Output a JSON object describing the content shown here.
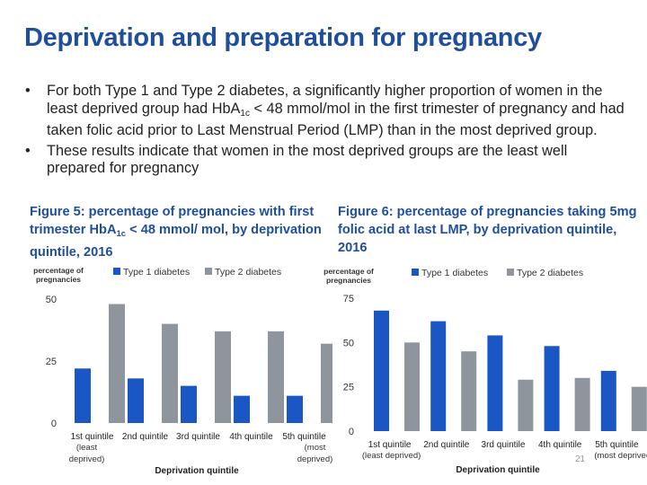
{
  "slide": {
    "title": "Deprivation and preparation for pregnancy",
    "page_number": "21"
  },
  "bullets": [
    {
      "mark": "•",
      "text_a": "For both Type 1 and Type 2 diabetes, a significantly higher proportion of women in the least deprived group had HbA",
      "text_sub": "1c",
      "text_b": " < 48 mmol/mol in the first trimester of pregnancy and had taken folic acid prior to Last Menstrual Period (LMP) than in the most deprived group."
    },
    {
      "mark": "•",
      "text_a": "These results indicate that women in the most deprived groups are the least well prepared for pregnancy",
      "text_sub": "",
      "text_b": ""
    }
  ],
  "colors": {
    "title": "#1f4e9c",
    "type1": "#1a56c4",
    "type2": "#8f959c"
  },
  "chart_data": [
    {
      "type": "bar",
      "title_a": "Figure 5: percentage of pregnancies with first trimester HbA",
      "title_sub": "1c",
      "title_b": " < 48 mmol/ mol, by deprivation quintile, 2016",
      "ylabel_lines": [
        "percentage of",
        "pregnancies"
      ],
      "xlabel": "Deprivation quintile",
      "categories": [
        "1st quintile",
        "2nd quintile",
        "3rd quintile",
        "4th quintile",
        "5th quintile"
      ],
      "category_sublabels": {
        "first": [
          "(least",
          "deprived)"
        ],
        "last": [
          "(most",
          "deprived)"
        ]
      },
      "yticks": [
        0,
        25,
        50
      ],
      "ylim": [
        0,
        50
      ],
      "legend_position": "top",
      "series": [
        {
          "name": "Type 1 diabetes",
          "values": [
            22,
            18,
            15,
            11,
            11
          ]
        },
        {
          "name": "Type 2 diabetes",
          "values": [
            48,
            40,
            37,
            37,
            32
          ]
        }
      ]
    },
    {
      "type": "bar",
      "title_a": "Figure 6: percentage of pregnancies taking 5mg folic acid at last LMP, by deprivation quintile, 2016",
      "title_sub": "",
      "title_b": "",
      "ylabel_lines": [
        "percentage of",
        "pregnancies"
      ],
      "xlabel": "Deprivation quintile",
      "categories": [
        "1st quintile",
        "2nd quintile",
        "3rd quintile",
        "4th quintile",
        "5th quintile"
      ],
      "category_sublabels": {
        "first": [
          "(least deprived)"
        ],
        "last": [
          "(most deprived)"
        ]
      },
      "yticks": [
        0,
        25,
        50,
        75
      ],
      "ylim": [
        0,
        75
      ],
      "legend_position": "top",
      "series": [
        {
          "name": "Type 1 diabetes",
          "values": [
            68,
            62,
            54,
            48,
            34
          ]
        },
        {
          "name": "Type 2 diabetes",
          "values": [
            50,
            45,
            29,
            30,
            25
          ]
        }
      ]
    }
  ]
}
